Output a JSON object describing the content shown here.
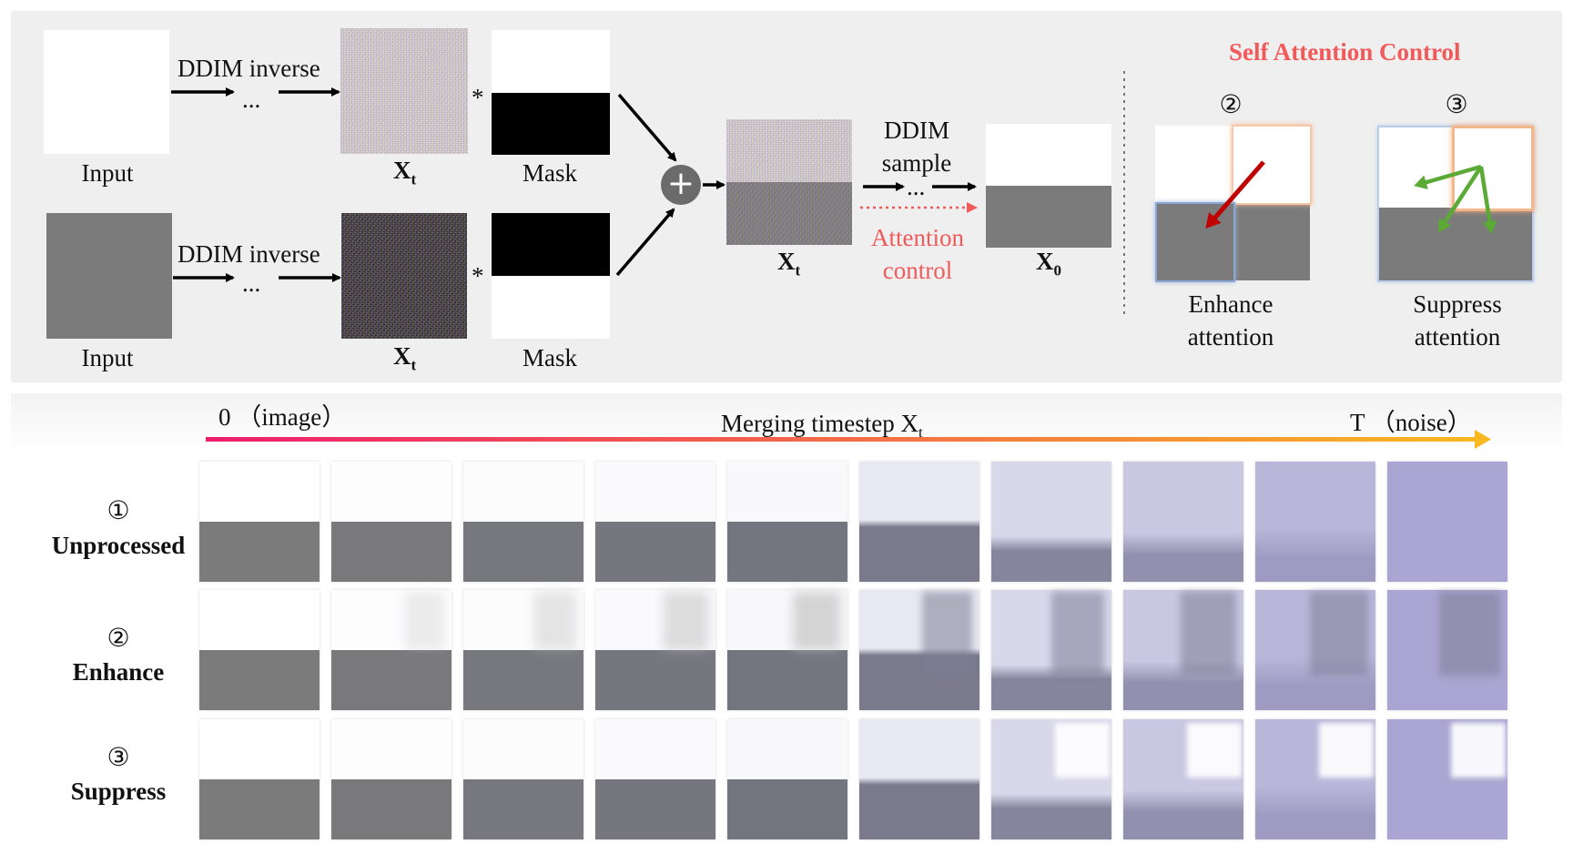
{
  "pipeline": {
    "input_label": "Input",
    "ddim_inverse": "DDIM inverse",
    "ellipsis": "...",
    "xt_base": "X",
    "xt_sub": "t",
    "x0_sub": "0",
    "star": "*",
    "mask_label": "Mask",
    "plus": "+",
    "ddim_line1": "DDIM",
    "ddim_line2": "sample",
    "attn_line1": "Attention",
    "attn_line2": "control"
  },
  "self_attention": {
    "title": "Self Attention Control",
    "enhance_num": "②",
    "suppress_num": "③",
    "enhance_line1": "Enhance",
    "enhance_line2": "attention",
    "suppress_line1": "Suppress",
    "suppress_line2": "attention"
  },
  "timeline": {
    "start": "0 （image）",
    "middle": "Merging timestep X",
    "middle_sub": "t",
    "end": "T （noise）"
  },
  "rows": [
    {
      "num": "①",
      "label": "Unprocessed"
    },
    {
      "num": "②",
      "label": "Enhance"
    },
    {
      "num": "③",
      "label": "Suppress"
    }
  ],
  "colors": {
    "panel_bg": "#efefef",
    "accent_red": "#f05a5a",
    "gradient_start": "#ee1e6e",
    "gradient_end": "#f9b820",
    "enhance_arrow": "#c00000",
    "suppress_arrow": "#5aaa35",
    "gray_half": "#7b7b7b"
  }
}
